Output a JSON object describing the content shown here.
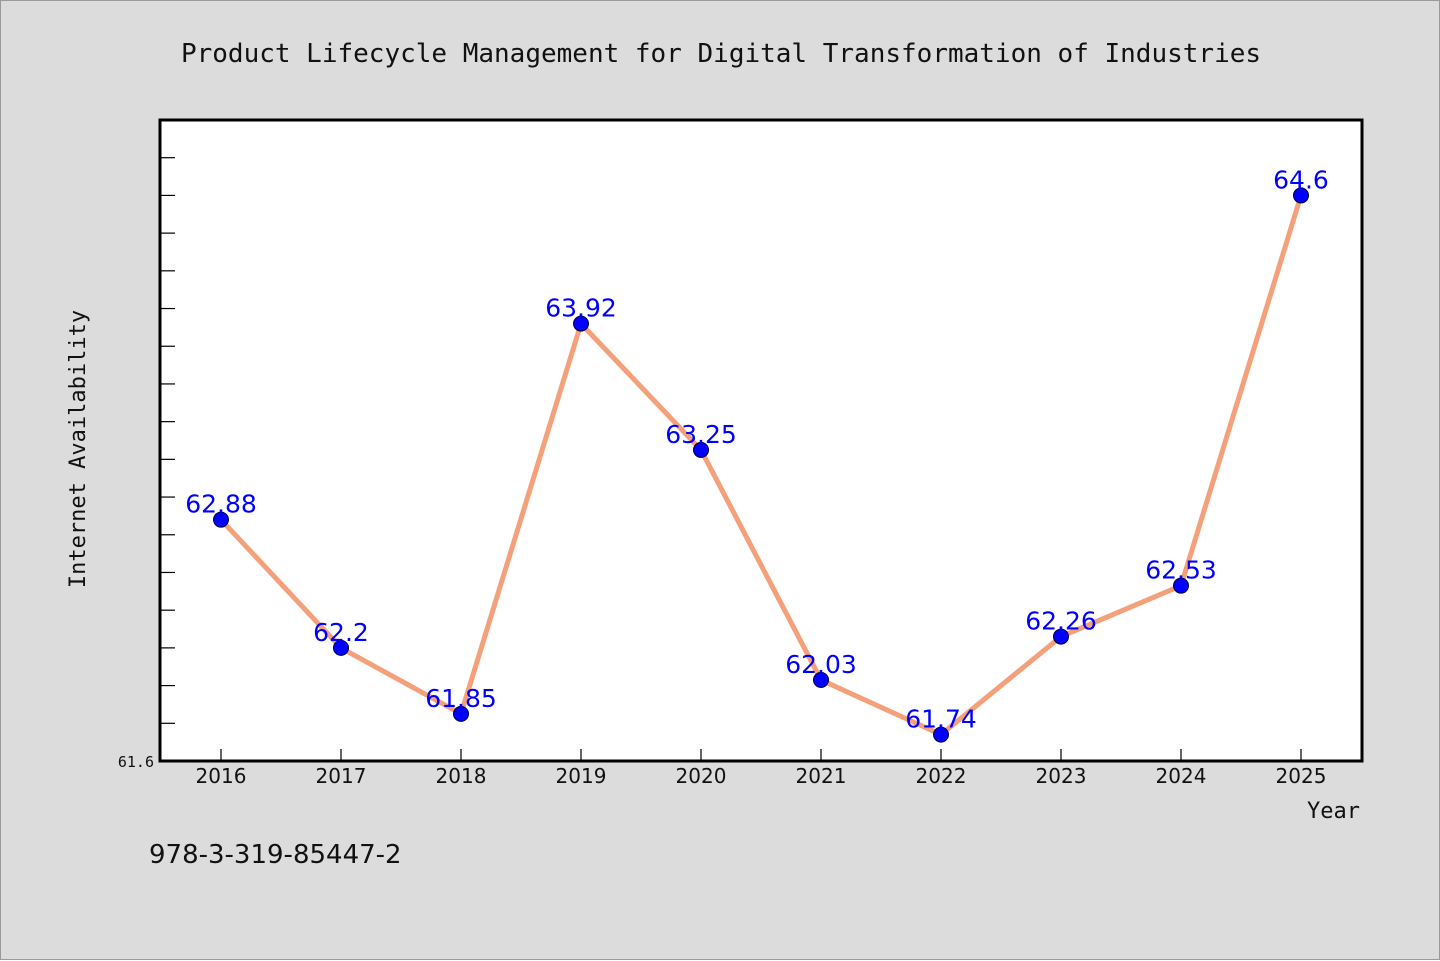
{
  "chart_data": {
    "type": "line",
    "title": "Product Lifecycle Management for Digital Transformation of Industries",
    "xlabel": "Year",
    "ylabel": "Internet Availability",
    "categories": [
      "2016",
      "2017",
      "2018",
      "2019",
      "2020",
      "2021",
      "2022",
      "2023",
      "2024",
      "2025"
    ],
    "values": [
      62.88,
      62.2,
      61.85,
      63.92,
      63.25,
      62.03,
      61.74,
      62.26,
      62.53,
      64.6
    ],
    "value_labels": [
      "62.88",
      "62.2",
      "61.85",
      "63.92",
      "63.25",
      "62.03",
      "61.74",
      "62.26",
      "62.53",
      "64.6"
    ],
    "ylim": [
      61.6,
      65.0
    ],
    "y_min_label": "61.6",
    "grid": false,
    "line_color": "#f4a07a",
    "marker_color": "#0000ff",
    "label_color": "#0000ff"
  },
  "footer": {
    "isbn": "978-3-319-85447-2"
  }
}
